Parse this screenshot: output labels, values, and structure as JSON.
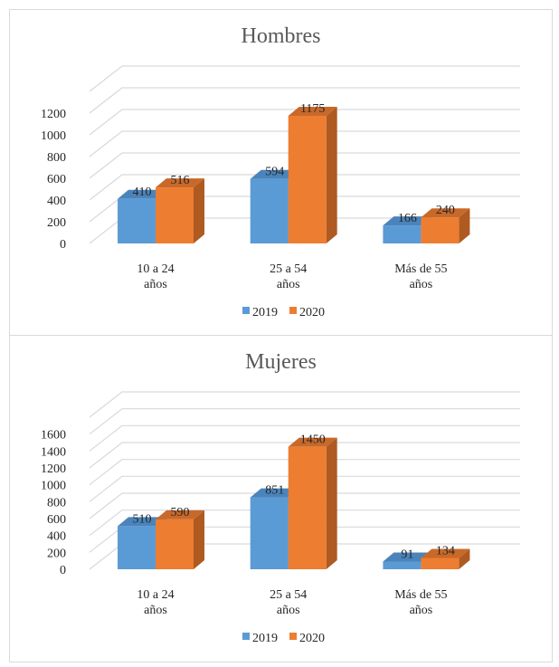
{
  "colors": {
    "series_2019_front": "#5b9bd5",
    "series_2019_side": "#41719c",
    "series_2019_top": "#4a84bb",
    "series_2020_front": "#ed7d31",
    "series_2020_side": "#ae5a21",
    "series_2020_top": "#c8692a",
    "grid": "#d9d9d9"
  },
  "chart_data": [
    {
      "type": "bar",
      "title": "Hombres",
      "categories": [
        [
          "10 a 24",
          "años"
        ],
        [
          "25 a 54",
          "años"
        ],
        [
          "Más de 55",
          "años"
        ]
      ],
      "series": [
        {
          "name": "2019",
          "values": [
            410,
            594,
            166
          ]
        },
        {
          "name": "2020",
          "values": [
            516,
            1175,
            240
          ]
        }
      ],
      "yticks": [
        0,
        200,
        400,
        600,
        800,
        1000,
        1200
      ],
      "ylim": [
        0,
        1400
      ],
      "grid": true,
      "legend": "bottom"
    },
    {
      "type": "bar",
      "title": "Mujeres",
      "categories": [
        [
          "10 a 24",
          "años"
        ],
        [
          "25 a 54",
          "años"
        ],
        [
          "Más de 55",
          "años"
        ]
      ],
      "series": [
        {
          "name": "2019",
          "values": [
            510,
            851,
            91
          ]
        },
        {
          "name": "2020",
          "values": [
            590,
            1450,
            134
          ]
        }
      ],
      "yticks": [
        0,
        200,
        400,
        600,
        800,
        1000,
        1200,
        1400,
        1600
      ],
      "ylim": [
        0,
        1800
      ],
      "grid": true,
      "legend": "bottom"
    }
  ]
}
